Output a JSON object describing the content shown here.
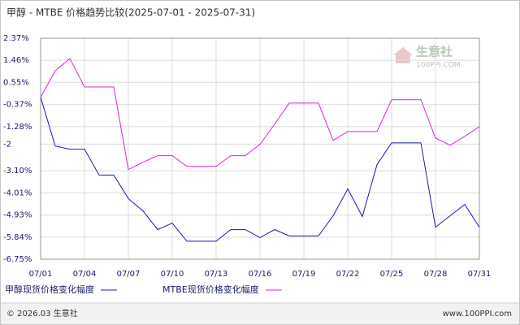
{
  "chart_data": {
    "type": "line",
    "title": "甲醇 - MTBE 价格趋势比较(2025-07-01 - 2025-07-31)",
    "categories": [
      "07/01",
      null,
      null,
      "07/04",
      null,
      null,
      "07/07",
      null,
      null,
      "07/10",
      null,
      null,
      "07/13",
      null,
      null,
      "07/16",
      null,
      null,
      "07/19",
      null,
      null,
      "07/22",
      null,
      null,
      "07/25",
      null,
      null,
      "07/28",
      null,
      null,
      "07/31"
    ],
    "series": [
      {
        "name": "甲醇现货价格变化幅度",
        "color": "#1818b8",
        "values": [
          -0.07,
          -2.08,
          -2.21,
          -2.21,
          -3.28,
          -3.28,
          -4.25,
          -4.76,
          -5.53,
          -5.26,
          -6.01,
          -6.01,
          -6.01,
          -5.53,
          -5.53,
          -5.86,
          -5.53,
          -5.79,
          -5.79,
          -5.79,
          -4.96,
          -3.85,
          -4.99,
          -2.85,
          -1.95,
          -1.95,
          -1.95,
          -5.43,
          -4.96,
          -4.49,
          -5.43
        ]
      },
      {
        "name": "MTBE现货价格变化幅度",
        "color": "#e020d8",
        "values": [
          -0.07,
          1.03,
          1.53,
          0.36,
          0.36,
          0.36,
          -3.05,
          -2.75,
          -2.48,
          -2.48,
          -2.92,
          -2.92,
          -2.92,
          -2.48,
          -2.48,
          -2.01,
          -1.18,
          -0.31,
          -0.31,
          -0.31,
          -1.85,
          -1.48,
          -1.48,
          -1.48,
          -0.17,
          -0.17,
          -0.17,
          -1.75,
          -2.05,
          -1.68,
          -1.28
        ]
      }
    ],
    "ylim": [
      -6.75,
      2.37
    ],
    "yticks": [
      {
        "value": 2.37,
        "label": "2.37%"
      },
      {
        "value": 1.46,
        "label": "1.46%"
      },
      {
        "value": 0.55,
        "label": "0.55%"
      },
      {
        "value": -0.37,
        "label": "-0.37%"
      },
      {
        "value": -1.28,
        "label": "-1.28%"
      },
      -2,
      {
        "value": -3.1,
        "label": "-3.10%"
      },
      {
        "value": -4.01,
        "label": "-4.01%"
      },
      {
        "value": -4.93,
        "label": "-4.93%"
      },
      {
        "value": -5.84,
        "label": "-5.84%"
      },
      {
        "value": -6.75,
        "label": "-6.75%"
      }
    ],
    "grid": true,
    "watermark": {
      "brand": "生意社",
      "site": "100PPI.COM"
    },
    "footer": {
      "copyright": "© 2026.03 生意社",
      "site": "www.100PPI.com"
    }
  }
}
